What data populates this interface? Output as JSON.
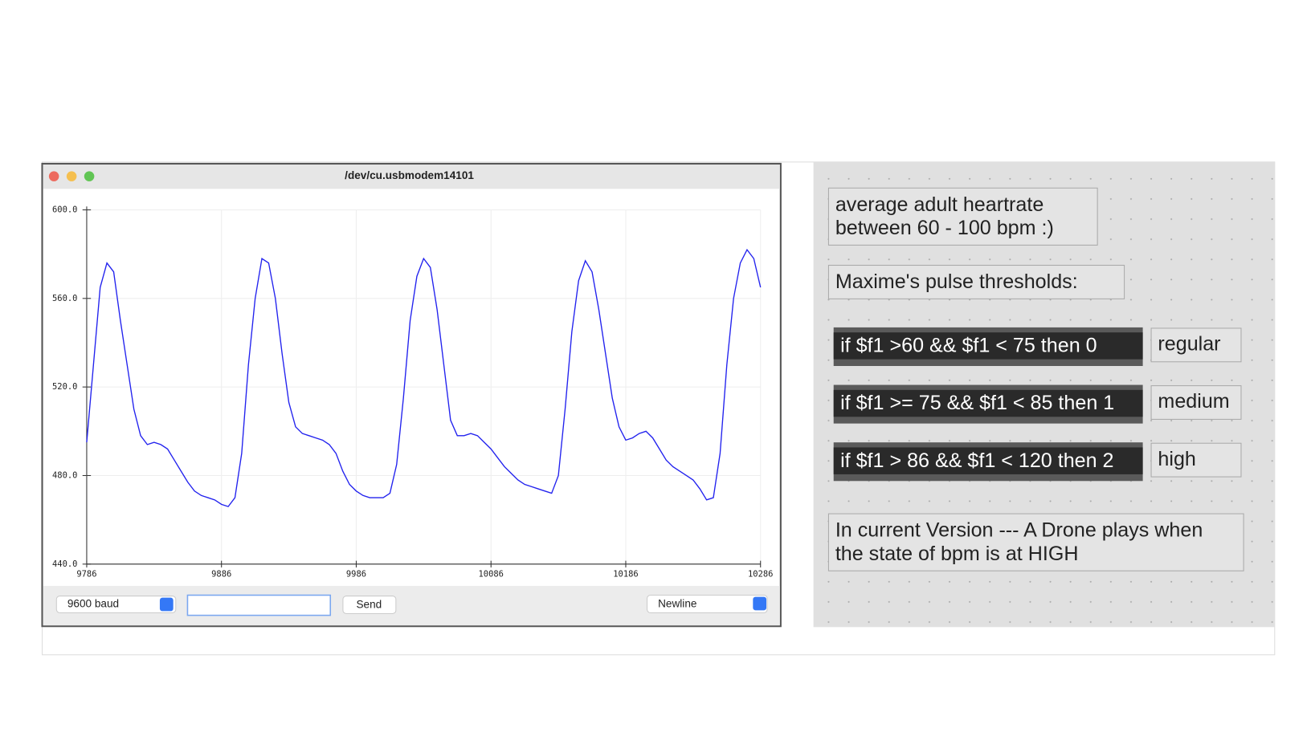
{
  "window": {
    "title": "/dev/cu.usbmodem14101"
  },
  "chart_data": {
    "type": "line",
    "color": "#2222ee",
    "grid": true,
    "xlim": [
      9786,
      10286
    ],
    "xticks": [
      9786,
      9886,
      9986,
      10086,
      10186,
      10286
    ],
    "ylim": [
      440,
      600
    ],
    "yticks": [
      {
        "value": 440,
        "label": "440.0"
      },
      {
        "value": 480,
        "label": "480.0"
      },
      {
        "value": 520,
        "label": "520.0"
      },
      {
        "value": 560,
        "label": "560.0"
      },
      {
        "value": 600,
        "label": "600.0"
      }
    ],
    "x": [
      9786,
      9791,
      9796,
      9801,
      9806,
      9811,
      9816,
      9821,
      9826,
      9831,
      9836,
      9841,
      9846,
      9851,
      9856,
      9861,
      9866,
      9871,
      9876,
      9881,
      9886,
      9891,
      9896,
      9901,
      9906,
      9911,
      9916,
      9921,
      9926,
      9931,
      9936,
      9941,
      9946,
      9951,
      9956,
      9961,
      9966,
      9971,
      9976,
      9981,
      9986,
      9991,
      9996,
      10001,
      10006,
      10011,
      10016,
      10021,
      10026,
      10031,
      10036,
      10041,
      10046,
      10051,
      10056,
      10061,
      10066,
      10071,
      10076,
      10081,
      10086,
      10091,
      10096,
      10101,
      10106,
      10111,
      10116,
      10121,
      10126,
      10131,
      10136,
      10141,
      10146,
      10151,
      10156,
      10161,
      10166,
      10171,
      10176,
      10181,
      10186,
      10191,
      10196,
      10201,
      10206,
      10211,
      10216,
      10221,
      10226,
      10231,
      10236,
      10241,
      10246,
      10251,
      10256,
      10261,
      10266,
      10271,
      10276,
      10281,
      10286
    ],
    "values": [
      495,
      530,
      565,
      576,
      572,
      550,
      530,
      510,
      498,
      494,
      495,
      494,
      492,
      487,
      482,
      477,
      473,
      471,
      470,
      469,
      467,
      466,
      470,
      490,
      530,
      560,
      578,
      576,
      560,
      535,
      513,
      502,
      499,
      498,
      497,
      496,
      494,
      490,
      482,
      476,
      473,
      471,
      470,
      470,
      470,
      472,
      485,
      515,
      550,
      570,
      578,
      574,
      555,
      530,
      505,
      498,
      498,
      499,
      498,
      495,
      492,
      488,
      484,
      481,
      478,
      476,
      475,
      474,
      473,
      472,
      480,
      510,
      545,
      568,
      577,
      572,
      555,
      535,
      515,
      502,
      496,
      497,
      499,
      500,
      497,
      492,
      487,
      484,
      482,
      480,
      478,
      474,
      469,
      470,
      490,
      530,
      560,
      576,
      582,
      578,
      565
    ]
  },
  "controls": {
    "baud": "9600 baud",
    "send": "Send",
    "line_ending": "Newline"
  },
  "patch": {
    "comments": [
      {
        "lines": [
          "average adult heartrate",
          "between 60 - 100 bpm :)"
        ]
      },
      {
        "lines": [
          "Maxime's pulse thresholds:"
        ]
      },
      {
        "lines": [
          "In current Version --- A Drone plays when",
          "the state of bpm is at HIGH"
        ]
      }
    ],
    "rules": [
      {
        "expression": "if $f1 >60 && $f1 < 75 then 0",
        "message": "regular"
      },
      {
        "expression": "if $f1 >= 75 && $f1 < 85 then 1",
        "message": "medium"
      },
      {
        "expression": "if $f1 > 86 && $f1 < 120 then 2",
        "message": "high"
      }
    ]
  }
}
